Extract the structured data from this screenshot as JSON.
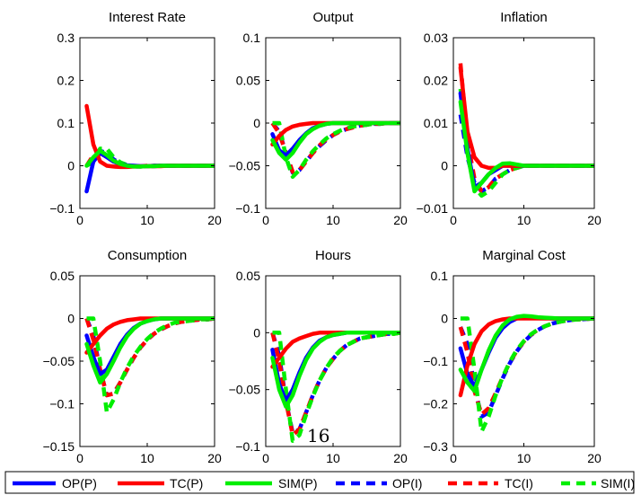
{
  "page_number": "16",
  "chart_data": {
    "type": "line",
    "x": [
      1,
      2,
      3,
      4,
      5,
      6,
      7,
      8,
      9,
      10,
      11,
      12,
      13,
      14,
      15,
      16,
      17,
      18,
      19,
      20
    ],
    "xlim": [
      0,
      20
    ],
    "xticks": [
      0,
      10,
      20
    ],
    "grid": false,
    "legend_position": "bottom",
    "colors": {
      "OP": "#0000ff",
      "TC": "#ff0000",
      "SIM": "#00ee00"
    },
    "legend": [
      {
        "key": "OP_P",
        "label": "OP(P)",
        "color": "#0000ff",
        "style": "solid"
      },
      {
        "key": "TC_P",
        "label": "TC(P)",
        "color": "#ff0000",
        "style": "solid"
      },
      {
        "key": "SIM_P",
        "label": "SIM(P)",
        "color": "#00ee00",
        "style": "solid"
      },
      {
        "key": "OP_I",
        "label": "OP(I)",
        "color": "#0000ff",
        "style": "dashed"
      },
      {
        "key": "TC_I",
        "label": "TC(I)",
        "color": "#ff0000",
        "style": "dashed"
      },
      {
        "key": "SIM_I",
        "label": "SIM(I)",
        "color": "#00ee00",
        "style": "dashed"
      }
    ],
    "panels": [
      {
        "title": "Interest Rate",
        "ylim": [
          -0.1,
          0.3
        ],
        "yticks": [
          {
            "v": -0.1,
            "t": "−0.1"
          },
          {
            "v": 0,
            "t": "0"
          },
          {
            "v": 0.1,
            "t": "0.1"
          },
          {
            "v": 0.2,
            "t": "0.2"
          },
          {
            "v": 0.3,
            "t": "0.3"
          }
        ],
        "series": {
          "OP_P": [
            -0.06,
            0.01,
            0.03,
            0.02,
            0.01,
            0.004,
            0.001,
            0,
            -0.001,
            -0.001,
            0,
            0,
            0,
            0,
            0,
            0,
            0,
            0,
            0,
            0
          ],
          "TC_P": [
            0.14,
            0.05,
            0.01,
            0,
            -0.002,
            -0.003,
            -0.003,
            -0.002,
            -0.002,
            -0.001,
            -0.001,
            -0.001,
            0,
            0,
            0,
            0,
            0,
            0,
            0,
            0
          ],
          "SIM_P": [
            0,
            0.02,
            0.035,
            0.025,
            0.012,
            0.004,
            0,
            -0.002,
            -0.002,
            -0.001,
            -0.001,
            0,
            0,
            0,
            0,
            0,
            0,
            0,
            0,
            0
          ],
          "OP_I": [
            0,
            0.01,
            0.035,
            0.03,
            0.015,
            0.005,
            0,
            -0.002,
            -0.002,
            -0.001,
            -0.001,
            0,
            0,
            0,
            0,
            0,
            0,
            0,
            0,
            0
          ],
          "TC_I": [
            0,
            0.025,
            0.03,
            0.02,
            0.01,
            0.004,
            0,
            -0.001,
            -0.001,
            0,
            0,
            0,
            0,
            0,
            0,
            0,
            0,
            0,
            0,
            0
          ],
          "SIM_I": [
            0,
            0.01,
            0.04,
            0.04,
            0.02,
            0.008,
            0.002,
            -0.001,
            -0.002,
            -0.001,
            0,
            0,
            0,
            0,
            0,
            0,
            0,
            0,
            0,
            0
          ]
        }
      },
      {
        "title": "Output",
        "ylim": [
          -0.1,
          0.1
        ],
        "yticks": [
          {
            "v": -0.1,
            "t": "−0.1"
          },
          {
            "v": -0.05,
            "t": "−0.05"
          },
          {
            "v": 0,
            "t": "0"
          },
          {
            "v": 0.05,
            "t": "0.05"
          },
          {
            "v": 0.1,
            "t": "0.1"
          }
        ],
        "series": {
          "OP_P": [
            -0.013,
            -0.032,
            -0.038,
            -0.03,
            -0.02,
            -0.012,
            -0.006,
            -0.003,
            -0.001,
            0,
            0,
            0,
            0,
            0,
            0,
            0,
            0,
            0,
            0,
            0
          ],
          "TC_P": [
            -0.025,
            -0.015,
            -0.008,
            -0.004,
            -0.002,
            -0.001,
            0,
            0,
            0,
            0,
            0,
            0,
            0,
            0,
            0,
            0,
            0,
            0,
            0,
            0
          ],
          "SIM_P": [
            -0.02,
            -0.035,
            -0.043,
            -0.035,
            -0.023,
            -0.013,
            -0.007,
            -0.003,
            -0.001,
            0,
            0,
            0,
            0,
            0,
            0,
            0,
            0,
            0,
            0,
            0
          ],
          "OP_I": [
            0,
            -0.01,
            -0.035,
            -0.058,
            -0.055,
            -0.045,
            -0.035,
            -0.027,
            -0.02,
            -0.014,
            -0.01,
            -0.007,
            -0.005,
            -0.003,
            -0.002,
            -0.001,
            -0.001,
            0,
            0,
            0
          ],
          "TC_I": [
            0,
            -0.012,
            -0.035,
            -0.057,
            -0.055,
            -0.045,
            -0.035,
            -0.026,
            -0.019,
            -0.014,
            -0.01,
            -0.007,
            -0.005,
            -0.003,
            -0.002,
            -0.001,
            -0.001,
            0,
            0,
            0
          ],
          "SIM_I": [
            0,
            0,
            -0.04,
            -0.063,
            -0.055,
            -0.043,
            -0.033,
            -0.025,
            -0.018,
            -0.013,
            -0.009,
            -0.006,
            -0.004,
            -0.003,
            -0.002,
            -0.001,
            -0.001,
            0,
            0,
            0
          ]
        }
      },
      {
        "title": "Inflation",
        "ylim": [
          -0.01,
          0.03
        ],
        "yticks": [
          {
            "v": -0.01,
            "t": "−0.01"
          },
          {
            "v": 0,
            "t": "0"
          },
          {
            "v": 0.01,
            "t": "0.01"
          },
          {
            "v": 0.02,
            "t": "0.02"
          },
          {
            "v": 0.03,
            "t": "0.03"
          }
        ],
        "series": {
          "OP_P": [
            0.017,
            0.004,
            -0.005,
            -0.004,
            -0.002,
            -0.001,
            0,
            0,
            0,
            0,
            0,
            0,
            0,
            0,
            0,
            0,
            0,
            0,
            0,
            0
          ],
          "TC_P": [
            0.023,
            0.008,
            0.002,
            0,
            -0.0005,
            -0.0005,
            0,
            0,
            0,
            0,
            0,
            0,
            0,
            0,
            0,
            0,
            0,
            0,
            0,
            0
          ],
          "SIM_P": [
            0.015,
            0.003,
            -0.006,
            -0.004,
            -0.002,
            -0.0005,
            0.0005,
            0.0006,
            0.0003,
            0,
            0,
            0,
            0,
            0,
            0,
            0,
            0,
            0,
            0,
            0
          ],
          "OP_I": [
            0.012,
            0.002,
            -0.004,
            -0.006,
            -0.005,
            -0.003,
            -0.002,
            -0.001,
            -0.0005,
            0,
            0,
            0,
            0,
            0,
            0,
            0,
            0,
            0,
            0,
            0
          ],
          "TC_I": [
            0.024,
            0.006,
            -0.003,
            -0.006,
            -0.005,
            -0.003,
            -0.002,
            -0.001,
            -0.0005,
            0,
            0,
            0,
            0,
            0,
            0,
            0,
            0,
            0,
            0,
            0
          ],
          "SIM_I": [
            0.018,
            0.003,
            -0.005,
            -0.007,
            -0.006,
            -0.004,
            -0.002,
            -0.001,
            -0.0005,
            0,
            0,
            0,
            0,
            0,
            0,
            0,
            0,
            0,
            0,
            0
          ]
        }
      },
      {
        "title": "Consumption",
        "ylim": [
          -0.15,
          0.05
        ],
        "yticks": [
          {
            "v": -0.15,
            "t": "−0.15"
          },
          {
            "v": -0.1,
            "t": "−0.1"
          },
          {
            "v": -0.05,
            "t": "−0.05"
          },
          {
            "v": 0,
            "t": "0"
          },
          {
            "v": 0.05,
            "t": "0.05"
          }
        ],
        "series": {
          "OP_P": [
            -0.02,
            -0.045,
            -0.065,
            -0.06,
            -0.045,
            -0.03,
            -0.019,
            -0.011,
            -0.006,
            -0.003,
            -0.001,
            0,
            0,
            0,
            0,
            0,
            0,
            0,
            0,
            0
          ],
          "TC_P": [
            -0.04,
            -0.03,
            -0.02,
            -0.012,
            -0.007,
            -0.004,
            -0.002,
            -0.001,
            0,
            0,
            0,
            0,
            0,
            0,
            0,
            0,
            0,
            0,
            0,
            0
          ],
          "SIM_P": [
            -0.03,
            -0.055,
            -0.075,
            -0.065,
            -0.05,
            -0.034,
            -0.021,
            -0.012,
            -0.006,
            -0.003,
            -0.001,
            0,
            0,
            0,
            0,
            0,
            0,
            0,
            0,
            0
          ],
          "OP_I": [
            0,
            -0.02,
            -0.06,
            -0.09,
            -0.088,
            -0.075,
            -0.06,
            -0.046,
            -0.034,
            -0.025,
            -0.018,
            -0.013,
            -0.009,
            -0.006,
            -0.004,
            -0.003,
            -0.002,
            -0.001,
            -0.001,
            0
          ],
          "TC_I": [
            0,
            -0.025,
            -0.06,
            -0.09,
            -0.088,
            -0.075,
            -0.06,
            -0.046,
            -0.034,
            -0.025,
            -0.018,
            -0.013,
            -0.009,
            -0.006,
            -0.004,
            -0.003,
            -0.002,
            -0.001,
            -0.001,
            0
          ],
          "SIM_I": [
            0,
            0,
            -0.05,
            -0.11,
            -0.095,
            -0.075,
            -0.058,
            -0.044,
            -0.033,
            -0.024,
            -0.017,
            -0.012,
            -0.008,
            -0.005,
            -0.004,
            -0.003,
            -0.002,
            -0.001,
            -0.001,
            0
          ]
        }
      },
      {
        "title": "Hours",
        "ylim": [
          -0.1,
          0.05
        ],
        "yticks": [
          {
            "v": -0.1,
            "t": "−0.1"
          },
          {
            "v": -0.05,
            "t": "−0.05"
          },
          {
            "v": 0,
            "t": "0"
          },
          {
            "v": 0.05,
            "t": "0.05"
          }
        ],
        "series": {
          "OP_P": [
            -0.015,
            -0.045,
            -0.06,
            -0.05,
            -0.035,
            -0.022,
            -0.013,
            -0.007,
            -0.004,
            -0.002,
            -0.001,
            0,
            0,
            0,
            0,
            0,
            0,
            0,
            0,
            0
          ],
          "TC_P": [
            -0.03,
            -0.022,
            -0.014,
            -0.008,
            -0.005,
            -0.003,
            -0.001,
            0,
            0,
            0,
            0,
            0,
            0,
            0,
            0,
            0,
            0,
            0,
            0,
            0
          ],
          "SIM_P": [
            -0.022,
            -0.05,
            -0.065,
            -0.055,
            -0.038,
            -0.024,
            -0.014,
            -0.008,
            -0.004,
            -0.002,
            -0.001,
            0,
            0,
            0,
            0,
            0,
            0,
            0,
            0,
            0
          ],
          "OP_I": [
            0,
            -0.02,
            -0.06,
            -0.088,
            -0.085,
            -0.07,
            -0.055,
            -0.042,
            -0.031,
            -0.023,
            -0.016,
            -0.011,
            -0.008,
            -0.005,
            -0.004,
            -0.003,
            -0.002,
            -0.001,
            -0.001,
            0
          ],
          "TC_I": [
            0,
            -0.025,
            -0.06,
            -0.09,
            -0.085,
            -0.07,
            -0.055,
            -0.042,
            -0.031,
            -0.023,
            -0.016,
            -0.011,
            -0.008,
            -0.005,
            -0.004,
            -0.003,
            -0.002,
            -0.001,
            -0.001,
            0
          ],
          "SIM_I": [
            0,
            0,
            -0.05,
            -0.095,
            -0.09,
            -0.072,
            -0.056,
            -0.042,
            -0.031,
            -0.022,
            -0.016,
            -0.011,
            -0.008,
            -0.005,
            -0.004,
            -0.003,
            -0.002,
            -0.001,
            -0.001,
            0
          ]
        }
      },
      {
        "title": "Marginal Cost",
        "ylim": [
          -0.3,
          0.1
        ],
        "yticks": [
          {
            "v": -0.3,
            "t": "−0.3"
          },
          {
            "v": -0.2,
            "t": "−0.2"
          },
          {
            "v": -0.1,
            "t": "−0.1"
          },
          {
            "v": 0,
            "t": "0"
          },
          {
            "v": 0.1,
            "t": "0.1"
          }
        ],
        "series": {
          "OP_P": [
            -0.07,
            -0.13,
            -0.16,
            -0.12,
            -0.08,
            -0.045,
            -0.022,
            -0.008,
            0,
            0.003,
            0.003,
            0.002,
            0.001,
            0,
            0,
            0,
            0,
            0,
            0,
            0
          ],
          "TC_P": [
            -0.18,
            -0.11,
            -0.06,
            -0.03,
            -0.014,
            -0.006,
            -0.002,
            0,
            0,
            0,
            0,
            0,
            0,
            0,
            0,
            0,
            0,
            0,
            0,
            0
          ],
          "SIM_P": [
            -0.12,
            -0.15,
            -0.17,
            -0.12,
            -0.075,
            -0.04,
            -0.016,
            -0.002,
            0.004,
            0.006,
            0.005,
            0.003,
            0.002,
            0.001,
            0,
            0,
            0,
            0,
            0,
            0
          ],
          "OP_I": [
            -0.02,
            -0.06,
            -0.16,
            -0.23,
            -0.22,
            -0.18,
            -0.14,
            -0.105,
            -0.077,
            -0.055,
            -0.039,
            -0.027,
            -0.018,
            -0.012,
            -0.008,
            -0.005,
            -0.003,
            -0.002,
            -0.001,
            0
          ],
          "TC_I": [
            -0.02,
            -0.08,
            -0.17,
            -0.225,
            -0.21,
            -0.175,
            -0.137,
            -0.103,
            -0.076,
            -0.054,
            -0.038,
            -0.026,
            -0.018,
            -0.012,
            -0.008,
            -0.005,
            -0.003,
            -0.002,
            -0.001,
            0
          ],
          "SIM_I": [
            0,
            0,
            -0.12,
            -0.265,
            -0.23,
            -0.18,
            -0.137,
            -0.102,
            -0.074,
            -0.053,
            -0.037,
            -0.026,
            -0.018,
            -0.012,
            -0.008,
            -0.005,
            -0.003,
            -0.002,
            -0.001,
            0
          ]
        }
      }
    ]
  }
}
